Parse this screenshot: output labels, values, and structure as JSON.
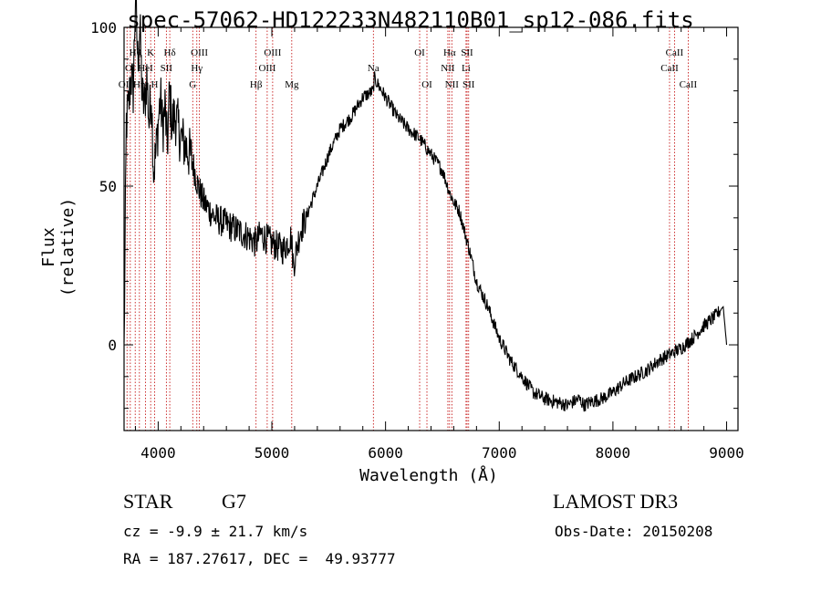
{
  "chart_data": {
    "type": "line",
    "title": "spec-57062-HD122233N482110B01_sp12-086.fits",
    "xlabel": "Wavelength (Å)",
    "ylabel": "Flux (relative)",
    "xlim": [
      3700,
      9100
    ],
    "ylim": [
      -27,
      100
    ],
    "xticks": [
      4000,
      5000,
      6000,
      7000,
      8000,
      9000
    ],
    "yticks": [
      0,
      50,
      100
    ],
    "series": [
      {
        "name": "spectrum",
        "x": [
          3700,
          3720,
          3740,
          3760,
          3780,
          3800,
          3820,
          3840,
          3860,
          3880,
          3900,
          3920,
          3940,
          3960,
          3980,
          4000,
          4020,
          4040,
          4060,
          4080,
          4100,
          4120,
          4150,
          4200,
          4250,
          4300,
          4350,
          4400,
          4500,
          4600,
          4700,
          4800,
          4861,
          4900,
          5000,
          5100,
          5170,
          5190,
          5250,
          5300,
          5400,
          5500,
          5600,
          5700,
          5800,
          5893,
          5900,
          6000,
          6100,
          6200,
          6300,
          6400,
          6500,
          6563,
          6600,
          6650,
          6700,
          6750,
          6800,
          6850,
          6900,
          7000,
          7100,
          7200,
          7300,
          7400,
          7500,
          7600,
          7700,
          7750,
          7800,
          7900,
          8000,
          8100,
          8200,
          8300,
          8400,
          8500,
          8600,
          8700,
          8800,
          8900,
          8970,
          9000
        ],
        "y": [
          -2,
          70,
          75,
          85,
          80,
          110,
          90,
          100,
          78,
          75,
          85,
          70,
          80,
          55,
          60,
          70,
          78,
          68,
          75,
          62,
          80,
          70,
          72,
          65,
          62,
          58,
          50,
          45,
          40,
          38,
          36,
          34,
          32,
          35,
          32,
          30,
          34,
          25,
          36,
          40,
          50,
          60,
          68,
          72,
          78,
          80,
          84,
          78,
          72,
          68,
          65,
          60,
          55,
          48,
          45,
          42,
          35,
          28,
          20,
          16,
          12,
          2,
          -5,
          -10,
          -15,
          -17,
          -18,
          -19,
          -17,
          -19,
          -18,
          -17,
          -15,
          -12,
          -10,
          -8,
          -5,
          -3,
          -1,
          2,
          6,
          9,
          12,
          0
        ]
      }
    ],
    "lines": [
      {
        "label": "Hθ",
        "wave": 3798,
        "row": 1
      },
      {
        "label": "OI",
        "wave": 3755,
        "row": 2
      },
      {
        "label": "OIII",
        "wave": 3726,
        "row": 3
      },
      {
        "label": "K",
        "wave": 3934,
        "row": 1
      },
      {
        "label": "HeI",
        "wave": 3889,
        "row": 2
      },
      {
        "label": "Hη",
        "wave": 3835,
        "row": 3
      },
      {
        "label": "Hδ",
        "wave": 4102,
        "row": 1
      },
      {
        "label": "SII",
        "wave": 4072,
        "row": 2
      },
      {
        "label": "H",
        "wave": 3969,
        "row": 3
      },
      {
        "label": "OIII",
        "wave": 4363,
        "row": 1
      },
      {
        "label": "Hγ",
        "wave": 4340,
        "row": 2
      },
      {
        "label": "G",
        "wave": 4304,
        "row": 3
      },
      {
        "label": "OIII",
        "wave": 5007,
        "row": 1
      },
      {
        "label": "OIII",
        "wave": 4959,
        "row": 2
      },
      {
        "label": "Hβ",
        "wave": 4861,
        "row": 3
      },
      {
        "label": "Mg",
        "wave": 5175,
        "row": 3
      },
      {
        "label": "Na",
        "wave": 5893,
        "row": 2
      },
      {
        "label": "OI",
        "wave": 6300,
        "row": 1
      },
      {
        "label": "OI",
        "wave": 6364,
        "row": 3
      },
      {
        "label": "Hα",
        "wave": 6563,
        "row": 1
      },
      {
        "label": "NII",
        "wave": 6548,
        "row": 2
      },
      {
        "label": "NII",
        "wave": 6583,
        "row": 3
      },
      {
        "label": "SII",
        "wave": 6717,
        "row": 1
      },
      {
        "label": "Li",
        "wave": 6708,
        "row": 2
      },
      {
        "label": "SII",
        "wave": 6731,
        "row": 3
      },
      {
        "label": "CaII",
        "wave": 8542,
        "row": 1
      },
      {
        "label": "CaII",
        "wave": 8498,
        "row": 2
      },
      {
        "label": "CaII",
        "wave": 8662,
        "row": 3
      }
    ]
  },
  "info": {
    "object_class": "STAR",
    "subclass": "G7",
    "survey": "LAMOST DR3",
    "redshift": "cz = -9.9 ± 21.7 km/s",
    "obs_date": "Obs-Date: 20150208",
    "coords": "RA = 187.27617, DEC =  49.93777"
  },
  "colors": {
    "spectrum": "#000000",
    "line_markers": "#c00000",
    "axes": "#000000"
  }
}
